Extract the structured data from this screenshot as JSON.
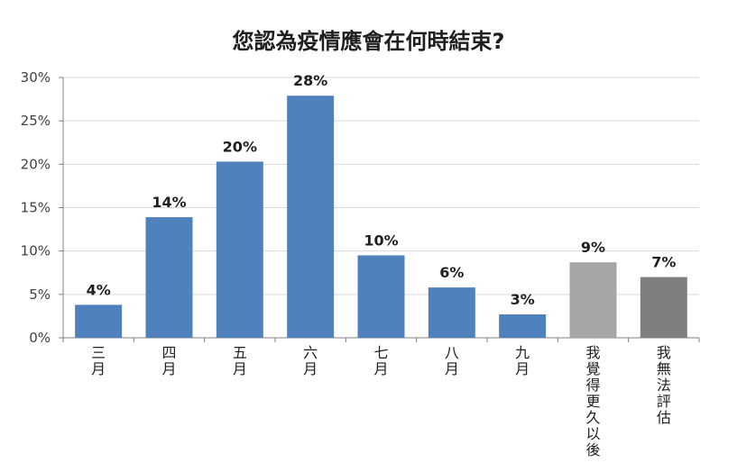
{
  "chart_data": {
    "type": "bar",
    "title": "您認為疫情應會在何時結束?",
    "categories": [
      "三月",
      "四月",
      "五月",
      "六月",
      "七月",
      "八月",
      "九月",
      "我覺得更久以後",
      "我無法評估"
    ],
    "values": [
      3.8,
      13.9,
      20.3,
      27.9,
      9.5,
      5.8,
      2.7,
      8.7,
      7.0
    ],
    "value_labels": [
      "4%",
      "14%",
      "20%",
      "28%",
      "10%",
      "6%",
      "3%",
      "9%",
      "7%"
    ],
    "colors": [
      "#4f81bd",
      "#4f81bd",
      "#4f81bd",
      "#4f81bd",
      "#4f81bd",
      "#4f81bd",
      "#4f81bd",
      "#a6a6a6",
      "#7f7f7f"
    ],
    "ylim": [
      0,
      30
    ],
    "yticks": [
      "0%",
      "5%",
      "10%",
      "15%",
      "20%",
      "25%",
      "30%"
    ],
    "ytick_values": [
      0,
      5,
      10,
      15,
      20,
      25,
      30
    ],
    "grid": true,
    "legend": "none"
  }
}
